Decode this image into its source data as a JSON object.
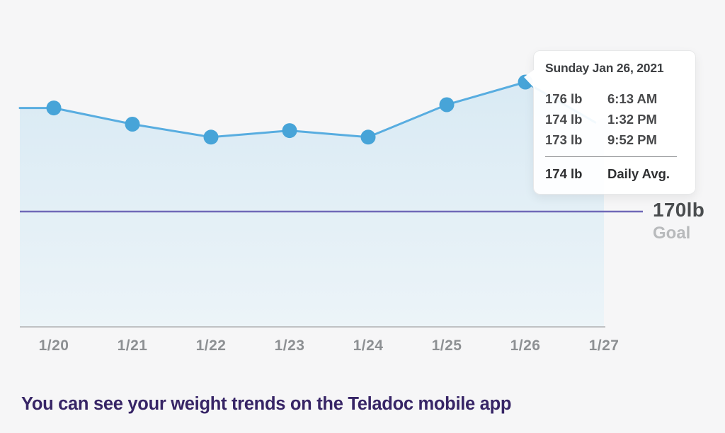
{
  "colors": {
    "background": "#f6f6f7",
    "line": "#58ade0",
    "dot": "#47a4d8",
    "ghost_dot": "#dce9f6",
    "area_top": "#d9eaf4",
    "area_bottom": "#ecf4f8",
    "goal_line": "#7069b8",
    "axis_line": "#bfc1c3",
    "tick_label": "#8d9093",
    "goal_value_text": "#4a4d4f",
    "goal_sub_text": "#b8babc",
    "tooltip_text": "#3d3f42",
    "message_text": "#372566"
  },
  "chart_data": {
    "type": "area",
    "title": "",
    "xlabel": "",
    "ylabel": "",
    "x_labels": [
      "1/20",
      "1/21",
      "1/22",
      "1/23",
      "1/24",
      "1/25",
      "1/26",
      "1/27"
    ],
    "series": [
      {
        "name": "Daily average weight",
        "unit": "lb",
        "values": [
          173.2,
          172.7,
          172.3,
          172.5,
          172.3,
          173.3,
          174.0,
          172.6
        ]
      }
    ],
    "goal": {
      "value": 170,
      "label": "170lb",
      "sublabel": "Goal"
    },
    "last_point_faded": true,
    "grid": "off",
    "legend": "none"
  },
  "tooltip": {
    "title": "Sunday Jan 26, 2021",
    "readings": [
      {
        "weight": "176 lb",
        "time": "6:13 AM"
      },
      {
        "weight": "174 lb",
        "time": "1:32 PM"
      },
      {
        "weight": "173 lb",
        "time": "9:52 PM"
      }
    ],
    "daily_avg": {
      "weight": "174 lb",
      "label": "Daily Avg."
    }
  },
  "message": "You can see your weight trends on the Teladoc mobile app"
}
